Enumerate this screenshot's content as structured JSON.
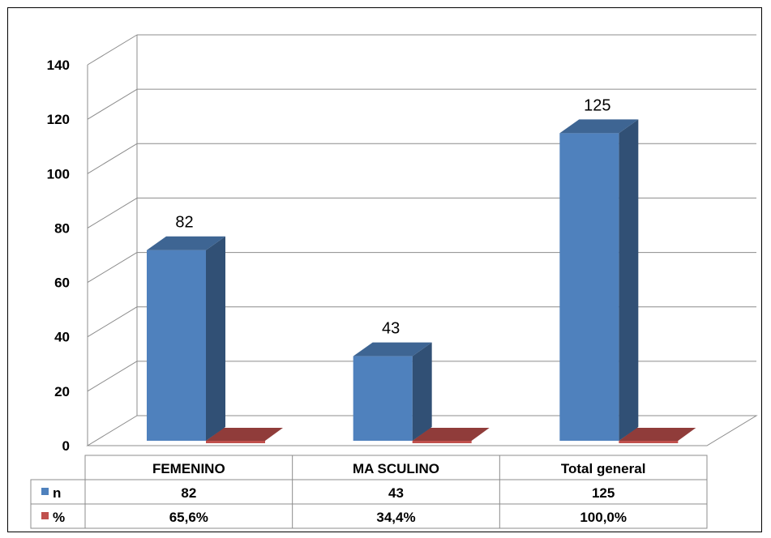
{
  "chart_data": {
    "type": "bar",
    "categories": [
      "FEMENINO",
      "MA SCULINO",
      "Total general"
    ],
    "series": [
      {
        "name": "n",
        "values": [
          82,
          43,
          125
        ],
        "display": [
          "82",
          "43",
          "125"
        ],
        "color": "#4F81BD"
      },
      {
        "name": "%",
        "values": [
          65.6,
          34.4,
          100.0
        ],
        "display": [
          "65,6%",
          "34,4%",
          "100,0%"
        ],
        "color": "#C0504D"
      }
    ],
    "data_labels": [
      "82",
      "43",
      "125"
    ],
    "y_ticks": [
      "0",
      "20",
      "40",
      "60",
      "80",
      "100",
      "120",
      "140"
    ],
    "ylim": [
      0,
      140
    ],
    "grid": true,
    "style": "3d-column",
    "data_table": true
  }
}
